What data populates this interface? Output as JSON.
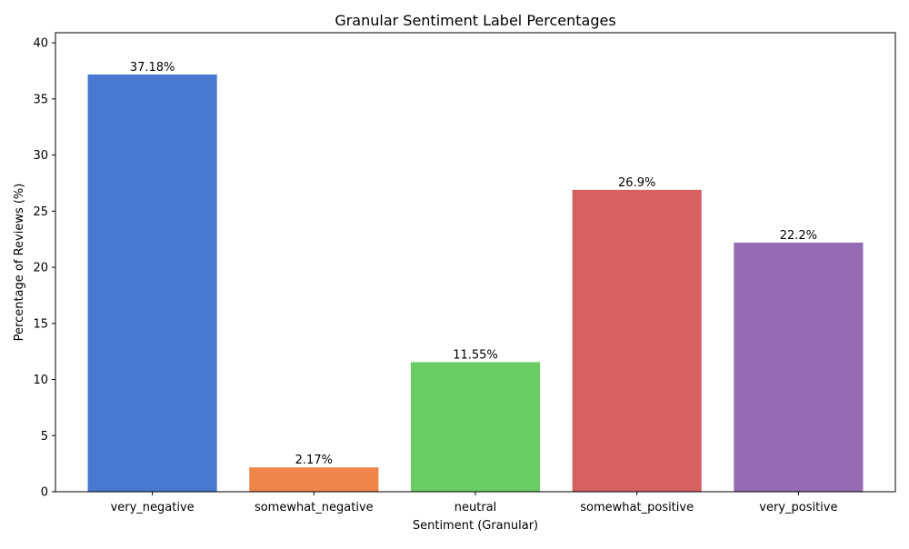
{
  "chart_data": {
    "type": "bar",
    "title": "Granular Sentiment Label Percentages",
    "xlabel": "Sentiment (Granular)",
    "ylabel": "Percentage of Reviews (%)",
    "categories": [
      "very_negative",
      "somewhat_negative",
      "neutral",
      "somewhat_positive",
      "very_positive"
    ],
    "values": [
      37.18,
      2.17,
      11.55,
      26.9,
      22.2
    ],
    "data_labels": [
      "37.18%",
      "2.17%",
      "11.55%",
      "26.9%",
      "22.2%"
    ],
    "colors": [
      "#4878d0",
      "#ee854a",
      "#6acc64",
      "#d65f5f",
      "#956cb4"
    ],
    "ylim": [
      0,
      40.9
    ],
    "yticks": [
      0,
      5,
      10,
      15,
      20,
      25,
      30,
      35,
      40
    ],
    "grid": false,
    "legend": "none"
  }
}
